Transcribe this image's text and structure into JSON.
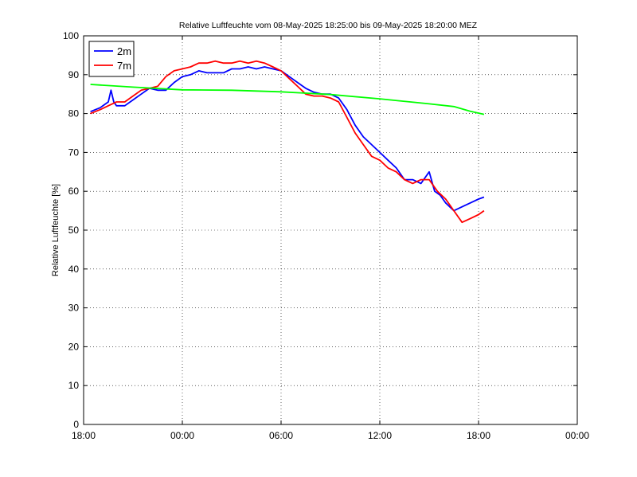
{
  "chart_data": {
    "type": "line",
    "title": "Relative Luftfeuchte vom 08-May-2025 18:25:00 bis 09-May-2025 18:20:00 MEZ",
    "ylabel": "Relative Luftfeuchte [%]",
    "xlabel": "",
    "xlim": [
      "08-May-2025 18:00",
      "10-May-2025 00:00"
    ],
    "ylim": [
      0,
      100
    ],
    "x_ticks": [
      "18:00",
      "00:00",
      "06:00",
      "12:00",
      "18:00",
      "00:00"
    ],
    "y_ticks": [
      "0",
      "10",
      "20",
      "30",
      "40",
      "50",
      "60",
      "70",
      "80",
      "90",
      "100"
    ],
    "grid": true,
    "legend": "top-left",
    "series": [
      {
        "name": "2m",
        "color": "#0000ff",
        "x": [
          "08-May-2025 18:25",
          "08-May-2025 19:00",
          "08-May-2025 19:30",
          "08-May-2025 19:40",
          "08-May-2025 19:50",
          "08-May-2025 20:00",
          "08-May-2025 20:30",
          "08-May-2025 21:00",
          "08-May-2025 21:30",
          "08-May-2025 22:00",
          "08-May-2025 22:30",
          "08-May-2025 23:00",
          "08-May-2025 23:30",
          "09-May-2025 00:00",
          "09-May-2025 00:30",
          "09-May-2025 01:00",
          "09-May-2025 01:30",
          "09-May-2025 02:00",
          "09-May-2025 02:30",
          "09-May-2025 03:00",
          "09-May-2025 03:30",
          "09-May-2025 04:00",
          "09-May-2025 04:30",
          "09-May-2025 05:00",
          "09-May-2025 05:30",
          "09-May-2025 06:00",
          "09-May-2025 06:30",
          "09-May-2025 07:00",
          "09-May-2025 07:30",
          "09-May-2025 08:00",
          "09-May-2025 08:30",
          "09-May-2025 09:00",
          "09-May-2025 09:30",
          "09-May-2025 10:00",
          "09-May-2025 10:30",
          "09-May-2025 11:00",
          "09-May-2025 11:30",
          "09-May-2025 12:00",
          "09-May-2025 12:30",
          "09-May-2025 13:00",
          "09-May-2025 13:30",
          "09-May-2025 14:00",
          "09-May-2025 14:30",
          "09-May-2025 15:00",
          "09-May-2025 15:20",
          "09-May-2025 15:40",
          "09-May-2025 16:00",
          "09-May-2025 16:30",
          "09-May-2025 17:00",
          "09-May-2025 17:30",
          "09-May-2025 18:00",
          "09-May-2025 18:20"
        ],
        "values": [
          80.5,
          81.5,
          83,
          86,
          83,
          82,
          82,
          83.5,
          85,
          86.5,
          86,
          86,
          88,
          89.5,
          90,
          91,
          90.5,
          90.5,
          90.5,
          91.5,
          91.5,
          92,
          91.5,
          92,
          91.5,
          91,
          89.5,
          88,
          86.5,
          85.5,
          85,
          85,
          84,
          81,
          77,
          74,
          72,
          70,
          68,
          66,
          63,
          63,
          62,
          65,
          60,
          59,
          57,
          55,
          56,
          57,
          58,
          58.5
        ]
      },
      {
        "name": "7m",
        "color": "#ff0000",
        "x": [
          "08-May-2025 18:25",
          "08-May-2025 19:00",
          "08-May-2025 19:30",
          "08-May-2025 20:00",
          "08-May-2025 20:30",
          "08-May-2025 21:00",
          "08-May-2025 21:30",
          "08-May-2025 22:00",
          "08-May-2025 22:30",
          "08-May-2025 23:00",
          "08-May-2025 23:30",
          "09-May-2025 00:00",
          "09-May-2025 00:30",
          "09-May-2025 01:00",
          "09-May-2025 01:30",
          "09-May-2025 02:00",
          "09-May-2025 02:30",
          "09-May-2025 03:00",
          "09-May-2025 03:30",
          "09-May-2025 04:00",
          "09-May-2025 04:30",
          "09-May-2025 05:00",
          "09-May-2025 05:30",
          "09-May-2025 06:00",
          "09-May-2025 06:30",
          "09-May-2025 07:00",
          "09-May-2025 07:30",
          "09-May-2025 08:00",
          "09-May-2025 08:30",
          "09-May-2025 09:00",
          "09-May-2025 09:30",
          "09-May-2025 10:00",
          "09-May-2025 10:30",
          "09-May-2025 11:00",
          "09-May-2025 11:30",
          "09-May-2025 12:00",
          "09-May-2025 12:30",
          "09-May-2025 13:00",
          "09-May-2025 13:30",
          "09-May-2025 14:00",
          "09-May-2025 14:30",
          "09-May-2025 15:00",
          "09-May-2025 15:30",
          "09-May-2025 16:00",
          "09-May-2025 16:30",
          "09-May-2025 17:00",
          "09-May-2025 17:30",
          "09-May-2025 18:00",
          "09-May-2025 18:20"
        ],
        "values": [
          80,
          81,
          82,
          83,
          83,
          84.5,
          86,
          86.5,
          87,
          89.5,
          91,
          91.5,
          92,
          93,
          93,
          93.5,
          93,
          93,
          93.5,
          93,
          93.5,
          93,
          92,
          91,
          89,
          87,
          85,
          84.5,
          84.5,
          84,
          83,
          79,
          75,
          72,
          69,
          68,
          66,
          65,
          63,
          62,
          63,
          63,
          60,
          58,
          55,
          52,
          53,
          54,
          55
        ]
      },
      {
        "name": "",
        "color": "#00ff00",
        "x": [
          "08-May-2025 18:25",
          "08-May-2025 21:00",
          "09-May-2025 00:00",
          "09-May-2025 03:00",
          "09-May-2025 06:00",
          "09-May-2025 09:00",
          "09-May-2025 12:00",
          "09-May-2025 15:00",
          "09-May-2025 16:30",
          "09-May-2025 17:30",
          "09-May-2025 18:20"
        ],
        "values": [
          87.5,
          86.8,
          86.1,
          86,
          85.6,
          84.9,
          83.8,
          82.5,
          81.8,
          80.6,
          79.8
        ]
      }
    ]
  }
}
